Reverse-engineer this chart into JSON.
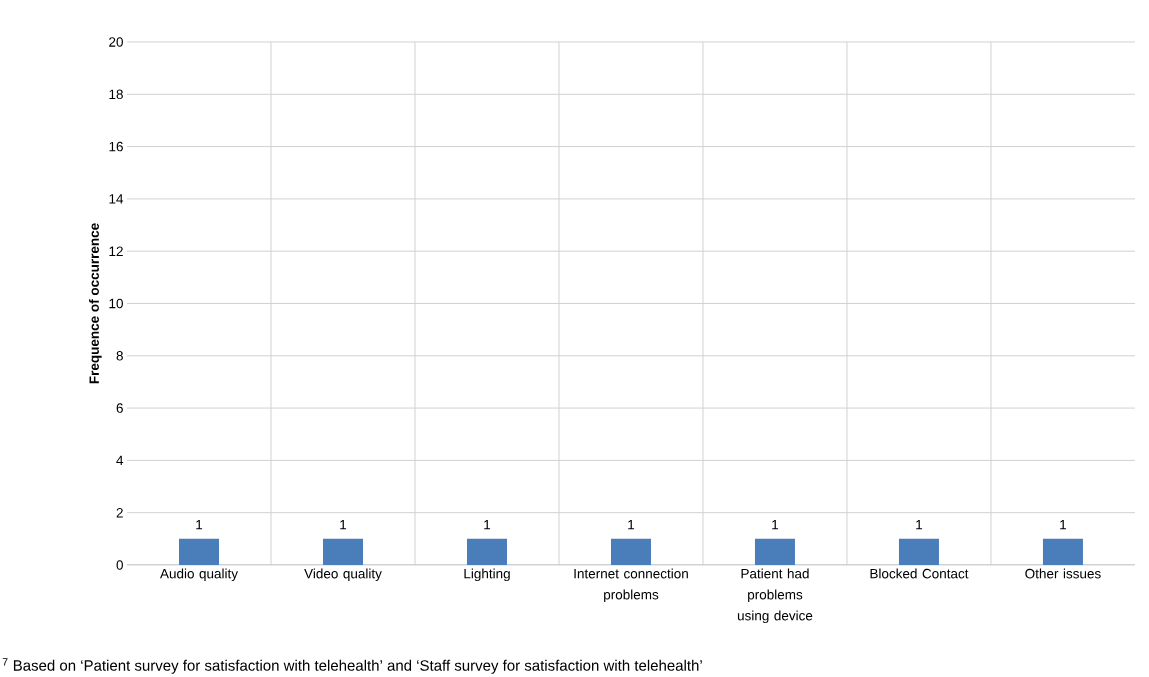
{
  "chart_data": {
    "type": "bar",
    "ylabel": "Frequence of occurrence",
    "categories": [
      "Audio quality",
      "Video quality",
      "Lighting",
      "Internet connection problems",
      "Patient had problems using device",
      "Blocked Contact",
      "Other issues"
    ],
    "values": [
      1,
      1,
      1,
      1,
      1,
      1,
      1
    ],
    "color": "#4a7ebb",
    "ylim": [
      0,
      20
    ],
    "yticks": [
      0,
      2,
      4,
      6,
      8,
      10,
      12,
      14,
      16,
      18,
      20
    ],
    "grid": true,
    "data_labels": true,
    "annotations": [
      "$^{7}$ Based on ‘Patient survey for satisfaction with telehealth’ and ‘Staff survey for satisfaction with telehealth’"
    ]
  }
}
